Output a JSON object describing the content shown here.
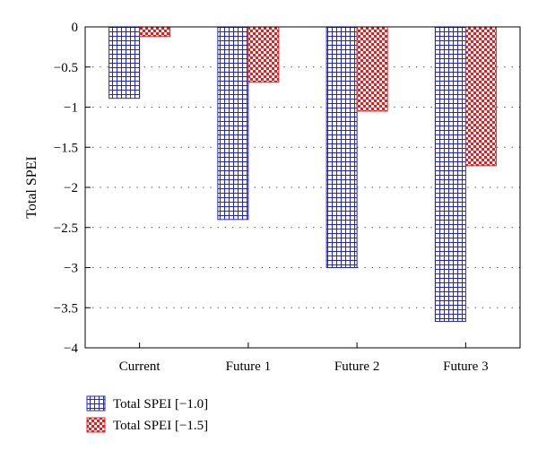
{
  "chart_data": {
    "type": "bar",
    "title": "",
    "xlabel": "",
    "ylabel": "Total SPEI",
    "ylim": [
      -4,
      0
    ],
    "yticks": [
      0,
      -0.5,
      -1,
      -1.5,
      -2,
      -2.5,
      -3,
      -3.5,
      -4
    ],
    "ytick_labels": [
      "0",
      "−0.5",
      "−1",
      "−1.5",
      "−2",
      "−2.5",
      "−3",
      "−3.5",
      "−4"
    ],
    "grid": "horizontal dotted",
    "legend_position": "bottom-left",
    "categories": [
      "Current",
      "Future 1",
      "Future 2",
      "Future 3"
    ],
    "series": [
      {
        "name": "Total SPEI [−1.0]",
        "values": [
          -0.89,
          -2.4,
          -3.0,
          -3.67
        ],
        "color": "#2222dd",
        "pattern": "grid"
      },
      {
        "name": "Total SPEI [−1.5]",
        "values": [
          -0.12,
          -0.69,
          -1.05,
          -1.73
        ],
        "color": "#e02020",
        "pattern": "checker"
      }
    ]
  }
}
